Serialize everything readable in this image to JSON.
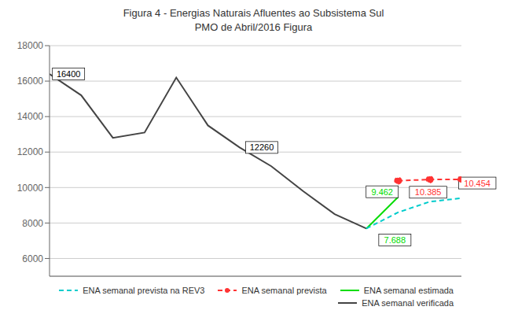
{
  "chart_data": {
    "type": "line",
    "title": "Figura 4 - Energias Naturais Afluentes ao Subsistema Sul\nPMO de Abril/2016 Figura",
    "xlim": [
      0,
      13
    ],
    "ylim": [
      5000,
      18000
    ],
    "yticks": [
      6000,
      8000,
      10000,
      12000,
      14000,
      16000,
      18000
    ],
    "grid": "y",
    "legend": "lower right",
    "tick_labels": "y",
    "series": [
      {
        "name": "ENA semanal prevista na REV3",
        "color": "#00cccc",
        "line_style": "dashed",
        "x": [
          10,
          11,
          12,
          13
        ],
        "values": [
          7688,
          8600,
          9200,
          9400
        ]
      },
      {
        "name": "ENA semanal prevista",
        "color": "#ff3333",
        "line_style": "dashed",
        "marker": "o",
        "x": [
          11,
          12,
          13
        ],
        "values": [
          10385,
          10454,
          10454
        ]
      },
      {
        "name": "ENA semanal estimada",
        "color": "#00dd00",
        "line_style": "solid",
        "x": [
          10,
          11
        ],
        "values": [
          7688,
          9462
        ]
      },
      {
        "name": "ENA semanal verificada",
        "color": "#444444",
        "line_style": "solid",
        "x": [
          0,
          1,
          2,
          3,
          4,
          5,
          6,
          7,
          8,
          9,
          10
        ],
        "values": [
          16400,
          15200,
          12800,
          13100,
          16200,
          13500,
          12260,
          11200,
          9800,
          8500,
          7688
        ]
      }
    ],
    "annotations": [
      {
        "text": "16400",
        "x": 0.6,
        "y": 16400,
        "color": "#000000"
      },
      {
        "text": "12260",
        "x": 6.7,
        "y": 12260,
        "color": "#000000"
      },
      {
        "text": "9.462",
        "x": 10.5,
        "y": 9762,
        "color": "#00dd00"
      },
      {
        "text": "7.688",
        "x": 10.9,
        "y": 7038,
        "color": "#00dd00"
      },
      {
        "text": "10.385",
        "x": 11.95,
        "y": 9735,
        "color": "#ff3333"
      },
      {
        "text": "10.454",
        "x": 13.5,
        "y": 10254,
        "color": "#ff3333"
      }
    ]
  }
}
